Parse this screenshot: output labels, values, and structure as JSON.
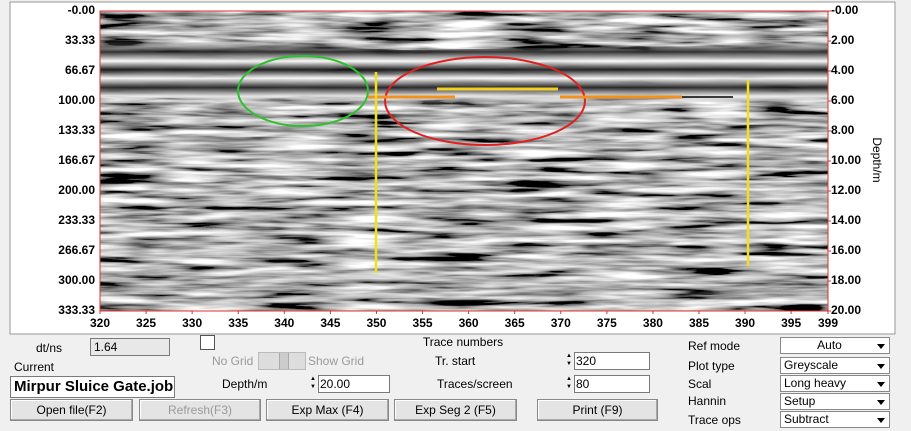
{
  "plot": {
    "y_left_labels": [
      "-0.00",
      "33.33",
      "66.67",
      "100.00",
      "133.33",
      "166.67",
      "200.00",
      "233.33",
      "266.67",
      "300.00",
      "333.33"
    ],
    "y_right_labels": [
      "-0.00",
      "2.00",
      "4.00",
      "6.00",
      "8.00",
      "10.00",
      "12.00",
      "14.00",
      "16.00",
      "18.00",
      "20.00"
    ],
    "right_axis_title": "Depth/m",
    "x_ticks": [
      320,
      325,
      330,
      335,
      340,
      345,
      350,
      355,
      360,
      365,
      370,
      375,
      380,
      385,
      390,
      395,
      399
    ],
    "x_axis_title": "Trace numbers"
  },
  "controls": {
    "dt_label": "dt/ns",
    "dt_value": "1.64",
    "no_grid": "No Grid",
    "show_grid": "Show Grid",
    "current_label": "Current",
    "current_file": "Mirpur Sluice Gate.job",
    "depth_label": "Depth/m",
    "depth_value": "20.00",
    "tr_start_label": "Tr. start",
    "tr_start_value": "320",
    "traces_label": "Traces/screen",
    "traces_value": "80",
    "settings": [
      {
        "label": "Ref mode",
        "value": "Auto"
      },
      {
        "label": "Plot type",
        "value": "Greyscale"
      },
      {
        "label": "Scal",
        "value": "Long heavy"
      },
      {
        "label": "Hannin",
        "value": "Setup"
      },
      {
        "label": "Trace ops",
        "value": "Subtract"
      }
    ],
    "buttons": [
      "Open file(F2)",
      "Refresh(F3)",
      "Exp Max (F4)",
      "Exp Seg 2 (F5)",
      "Print (F9)"
    ]
  }
}
